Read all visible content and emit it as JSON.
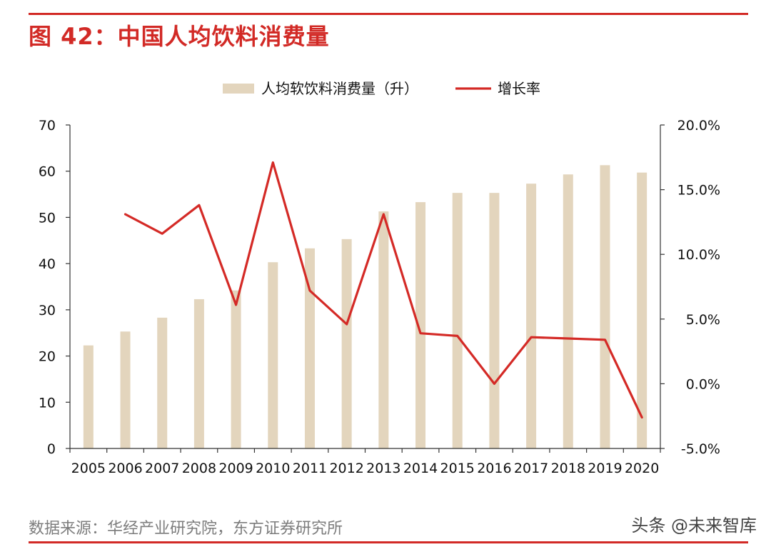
{
  "header": {
    "title": "图 42：中国人均饮料消费量"
  },
  "footer": {
    "source": "数据来源：华经产业研究院，东方证券研究所",
    "watermark": "头条 @未来智库"
  },
  "colors": {
    "bar": "#e3d5bd",
    "line": "#d42a26",
    "accent": "#d22a26",
    "axis": "#333333"
  },
  "chart_data": {
    "type": "bar+line",
    "title": "中国人均饮料消费量",
    "categories": [
      "2005",
      "2006",
      "2007",
      "2008",
      "2009",
      "2010",
      "2011",
      "2012",
      "2013",
      "2014",
      "2015",
      "2016",
      "2017",
      "2018",
      "2019",
      "2020"
    ],
    "series": [
      {
        "name": "人均软饮料消费量（升）",
        "type": "bar",
        "axis": "left",
        "values": [
          22.3,
          25.3,
          28.3,
          32.3,
          34.2,
          40.3,
          43.3,
          45.3,
          51.3,
          53.3,
          55.3,
          55.3,
          57.3,
          59.3,
          61.3,
          59.7
        ]
      },
      {
        "name": "增长率",
        "type": "line",
        "axis": "right",
        "values": [
          null,
          13.1,
          11.6,
          13.8,
          6.1,
          17.1,
          7.2,
          4.6,
          13.1,
          3.9,
          3.7,
          0.0,
          3.6,
          3.5,
          3.4,
          -2.6
        ]
      }
    ],
    "left_axis": {
      "min": 0,
      "max": 70,
      "ticks": [
        "0",
        "10",
        "20",
        "30",
        "40",
        "50",
        "60",
        "70"
      ]
    },
    "right_axis": {
      "min": -5,
      "max": 20,
      "ticks": [
        "-5.0%",
        "0.0%",
        "5.0%",
        "10.0%",
        "15.0%",
        "20.0%"
      ]
    },
    "legend": [
      {
        "label": "人均软饮料消费量（升）",
        "kind": "bar"
      },
      {
        "label": "增长率",
        "kind": "line"
      }
    ],
    "legend_position": "top-center",
    "grid": false
  }
}
